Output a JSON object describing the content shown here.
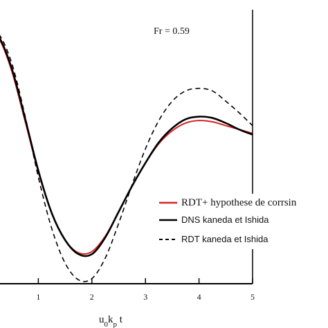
{
  "chart_data": {
    "type": "line",
    "title": "",
    "annotation": "Fr = 0.59",
    "xlabel": "u₀kₚt",
    "ylabel": "",
    "xlim": [
      0,
      5
    ],
    "ylim": [
      -1.0,
      1.1
    ],
    "x_ticks": [
      "1",
      "2",
      "3",
      "4",
      "5"
    ],
    "grid": false,
    "legend_position": "right",
    "series": [
      {
        "name": "RDT+ hypothese de corrsin",
        "color": "#d62020",
        "dash": "solid",
        "x": [
          0,
          0.25,
          0.5,
          0.75,
          1.0,
          1.25,
          1.5,
          1.75,
          2.0,
          2.25,
          2.5,
          2.75,
          3.0,
          3.25,
          3.5,
          3.75,
          4.0,
          4.25,
          4.5,
          4.75,
          5.0
        ],
        "y": [
          1.0,
          0.92,
          0.66,
          0.27,
          -0.13,
          -0.45,
          -0.66,
          -0.76,
          -0.75,
          -0.63,
          -0.44,
          -0.24,
          -0.06,
          0.09,
          0.19,
          0.25,
          0.27,
          0.26,
          0.23,
          0.2,
          0.17
        ]
      },
      {
        "name": "DNS kaneda et Ishida",
        "color": "#000000",
        "dash": "solid",
        "x": [
          0,
          0.25,
          0.5,
          0.75,
          1.0,
          1.25,
          1.5,
          1.75,
          2.0,
          2.25,
          2.5,
          2.75,
          3.0,
          3.25,
          3.5,
          3.75,
          4.0,
          4.25,
          4.5,
          4.75,
          5.0
        ],
        "y": [
          1.0,
          0.93,
          0.68,
          0.29,
          -0.12,
          -0.45,
          -0.66,
          -0.77,
          -0.77,
          -0.64,
          -0.44,
          -0.24,
          -0.06,
          0.1,
          0.21,
          0.28,
          0.3,
          0.29,
          0.25,
          0.2,
          0.16
        ]
      },
      {
        "name": "RDT kaneda et Ishida",
        "color": "#000000",
        "dash": "dashed",
        "x": [
          0,
          0.25,
          0.5,
          0.75,
          1.0,
          1.25,
          1.5,
          1.75,
          2.0,
          2.25,
          2.5,
          2.75,
          3.0,
          3.25,
          3.5,
          3.75,
          4.0,
          4.25,
          4.5,
          4.75,
          5.0
        ],
        "y": [
          1.0,
          0.95,
          0.72,
          0.31,
          -0.17,
          -0.57,
          -0.84,
          -0.97,
          -0.96,
          -0.8,
          -0.53,
          -0.23,
          0.05,
          0.27,
          0.42,
          0.5,
          0.52,
          0.5,
          0.42,
          0.33,
          0.23
        ]
      }
    ]
  }
}
